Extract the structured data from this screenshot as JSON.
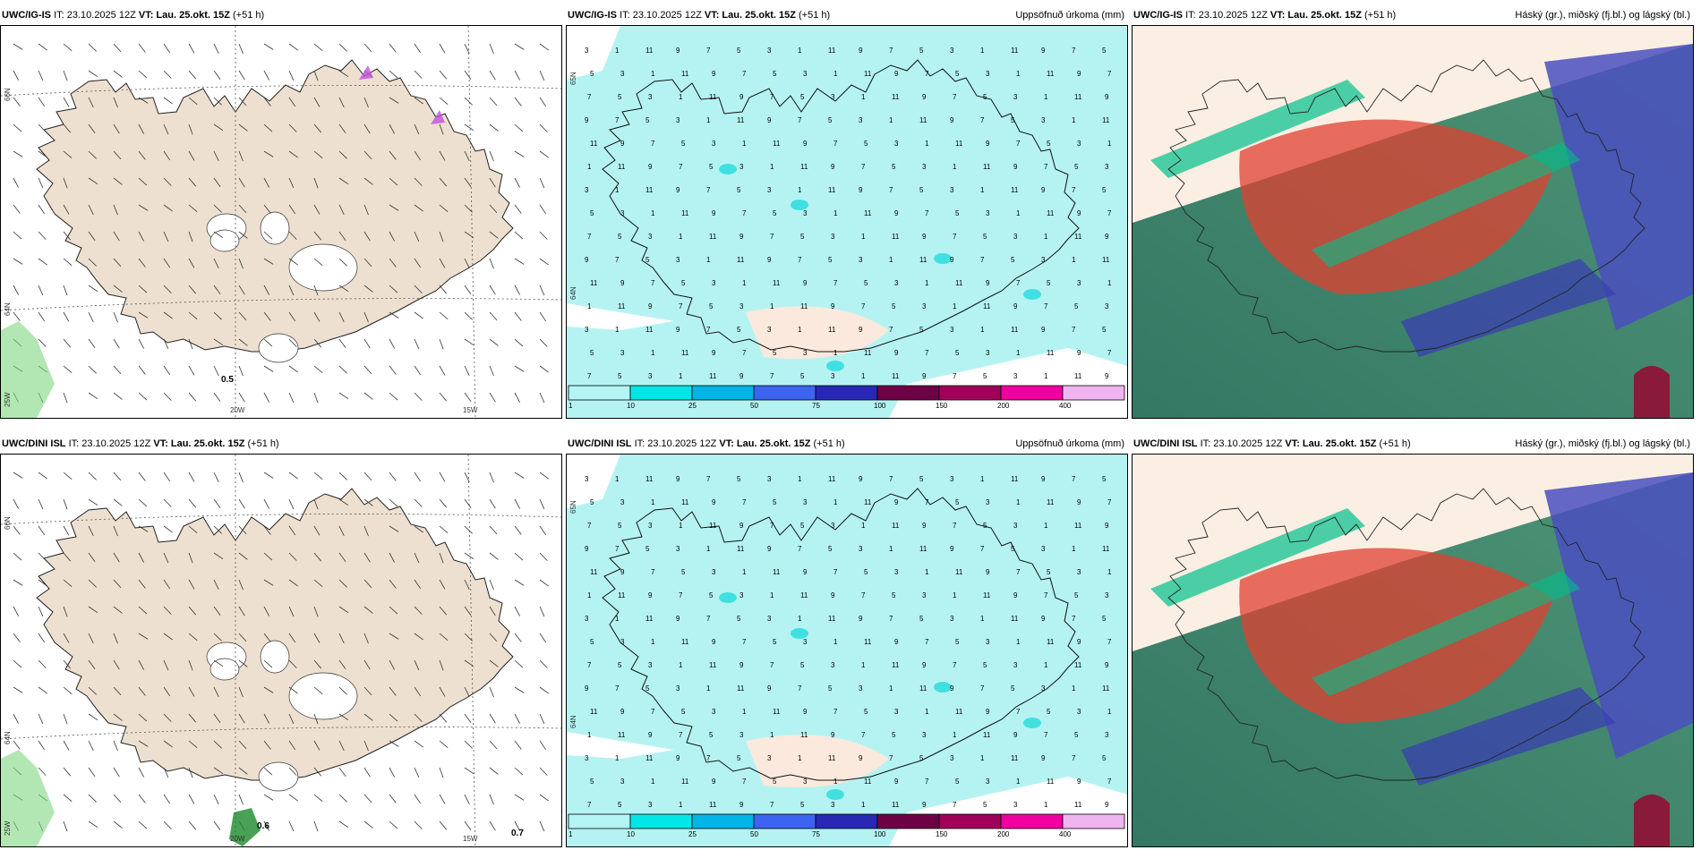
{
  "panels": [
    {
      "id": "p1",
      "model": "UWC/IG-IS",
      "it": "IT: 23.10.2025 12Z",
      "vt_label": "VT:",
      "vt": "Lau. 25.okt. 15Z",
      "lead": "(+51 h)",
      "right_title": "",
      "type": "wind",
      "lat_labels": [
        "66N",
        "64N"
      ],
      "lon_labels": [
        "20W",
        "15W",
        "25W"
      ],
      "precip_labels": [
        "0.5"
      ]
    },
    {
      "id": "p2",
      "model": "UWC/IG-IS",
      "it": "IT: 23.10.2025 12Z",
      "vt_label": "VT:",
      "vt": "Lau. 25.okt. 15Z",
      "lead": "(+51 h)",
      "right_title": "Uppsöfnuð úrkoma (mm)",
      "type": "precip",
      "lat_labels": [
        "65N",
        "64N"
      ]
    },
    {
      "id": "p3",
      "model": "UWC/IG-IS",
      "it": "IT: 23.10.2025 12Z",
      "vt_label": "VT:",
      "vt": "Lau. 25.okt. 15Z",
      "lead": "(+51 h)",
      "right_title": "Háský (gr.), miðský (fj.bl.) og lágský (bl.)",
      "type": "clouds"
    },
    {
      "id": "p4",
      "model": "UWC/DINI ISL",
      "it": "IT: 23.10.2025 12Z",
      "vt_label": "VT:",
      "vt": "Lau. 25.okt. 15Z",
      "lead": "(+51 h)",
      "right_title": "",
      "type": "wind",
      "lat_labels": [
        "66N",
        "64N"
      ],
      "lon_labels": [
        "20W",
        "15W",
        "25W"
      ],
      "precip_labels": [
        "0.6",
        "0.7"
      ]
    },
    {
      "id": "p5",
      "model": "UWC/DINI ISL",
      "it": "IT: 23.10.2025 12Z",
      "vt_label": "VT:",
      "vt": "Lau. 25.okt. 15Z",
      "lead": "(+51 h)",
      "right_title": "Uppsöfnuð úrkoma (mm)",
      "type": "precip",
      "lat_labels": [
        "65N",
        "64N"
      ]
    },
    {
      "id": "p6",
      "model": "UWC/DINI ISL",
      "it": "IT: 23.10.2025 12Z",
      "vt_label": "VT:",
      "vt": "Lau. 25.okt. 15Z",
      "lead": "(+51 h)",
      "right_title": "Háský (gr.), miðský (fj.bl.) og lágský (bl.)",
      "type": "clouds"
    }
  ],
  "colorbar": {
    "ticks": [
      "1",
      "10",
      "25",
      "50",
      "75",
      "100",
      "150",
      "200",
      "400"
    ],
    "colors": [
      "#b3f5f5",
      "#00e6e6",
      "#00b4e6",
      "#3c64f0",
      "#2828b4",
      "#6e0046",
      "#a0005a",
      "#f000a0",
      "#f0b4f0"
    ]
  },
  "colors": {
    "land": "#ede0d0",
    "precip_bg": "#b5f3f3",
    "land_dry": "#fbe9dd"
  }
}
